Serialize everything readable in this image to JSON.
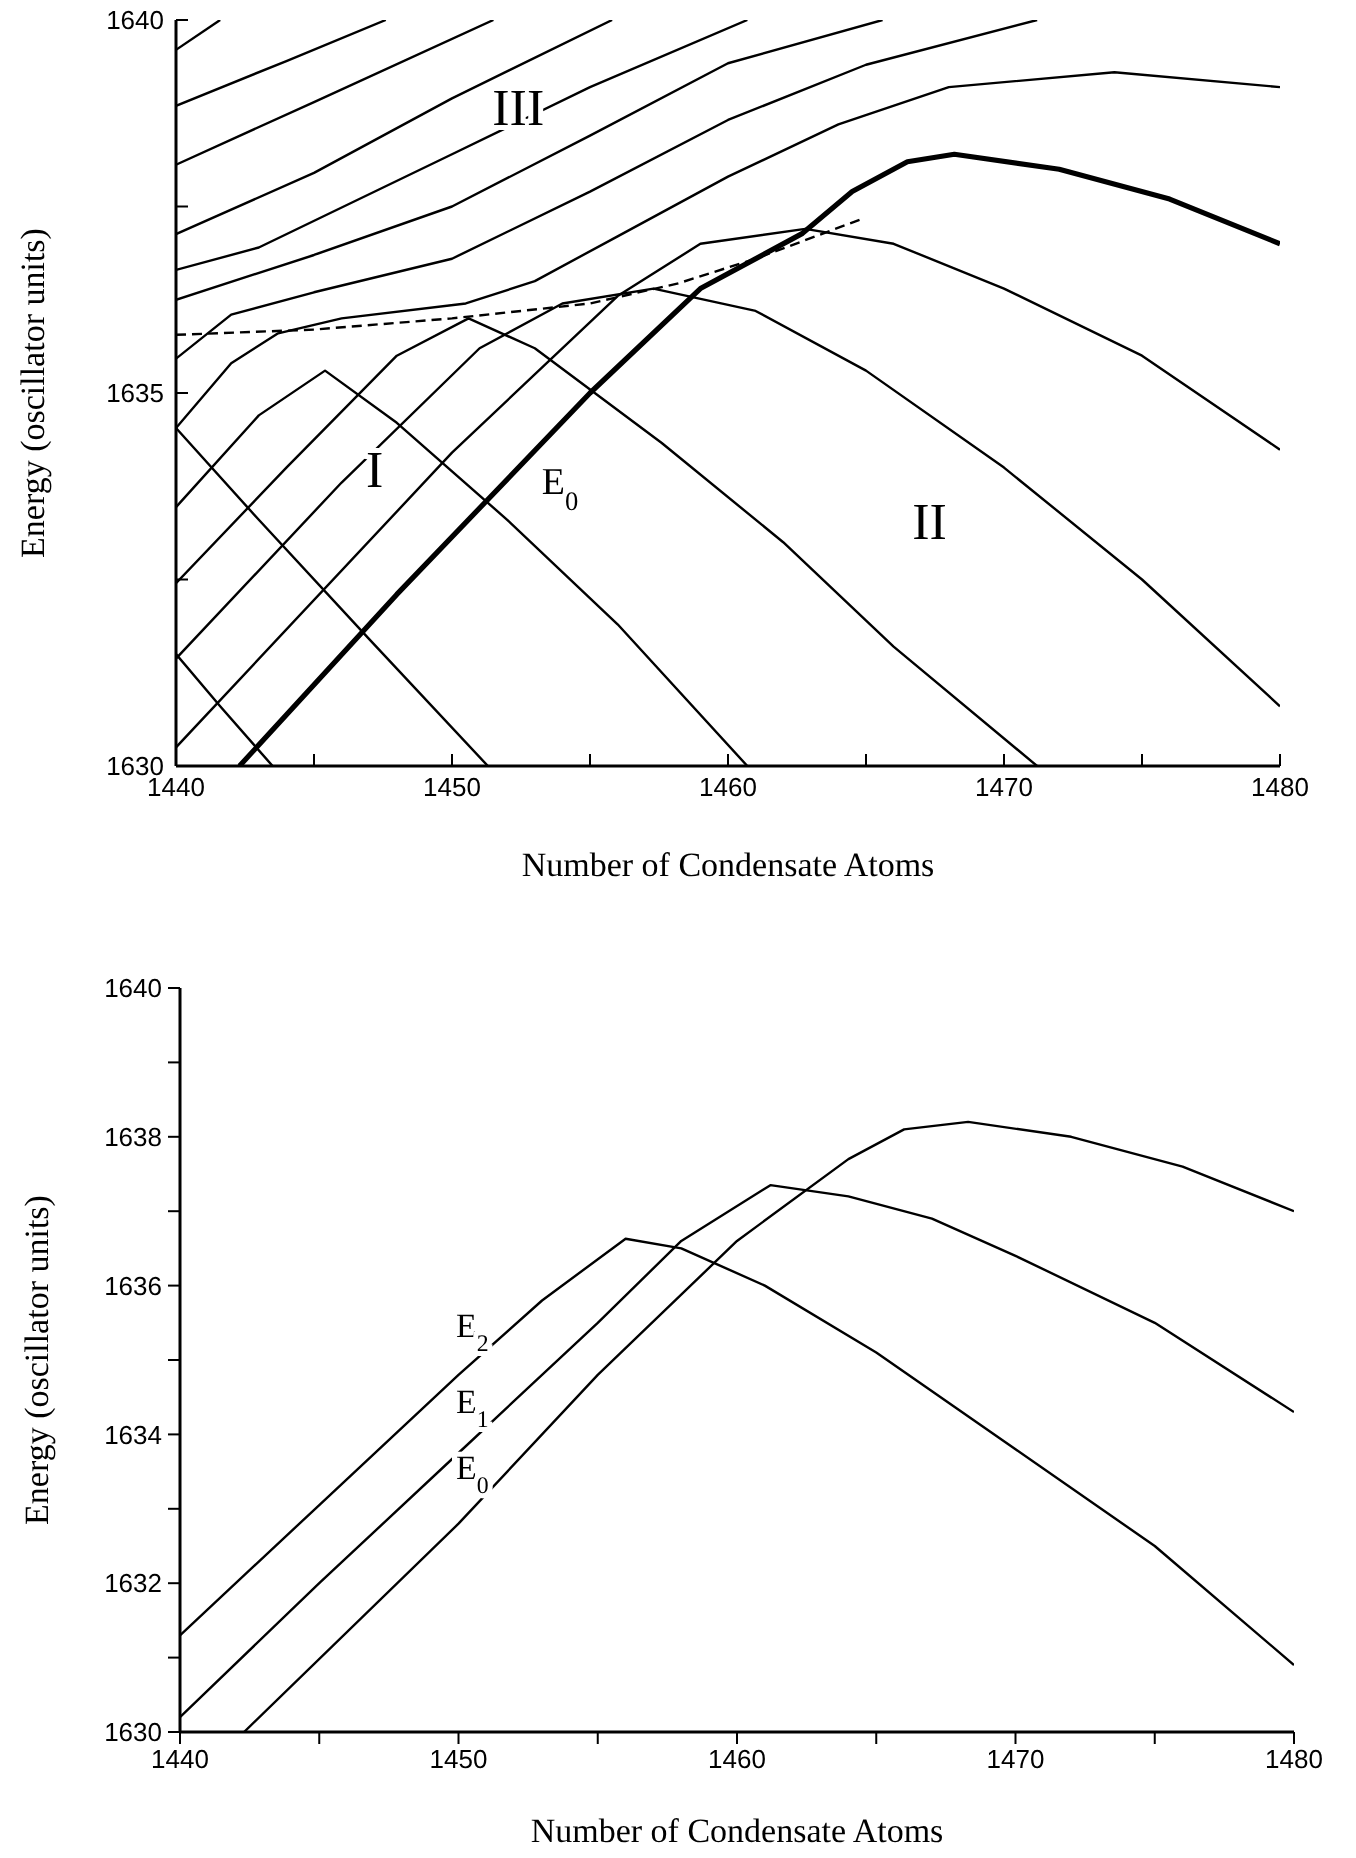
{
  "chart_data": [
    {
      "type": "line",
      "xlabel": "Number of Condensate Atoms",
      "ylabel": "Energy (oscillator units)",
      "xlim": [
        1440,
        1480
      ],
      "xticks": [
        1440,
        {
          "value": 1445,
          "label": null
        },
        1450,
        {
          "value": 1455,
          "label": null
        },
        1460,
        {
          "value": 1465,
          "label": null
        },
        1470,
        {
          "value": 1475,
          "label": null
        },
        1480
      ],
      "ylim": [
        1630,
        1640
      ],
      "yticks": [
        1630,
        {
          "value": 1632.5,
          "label": null
        },
        1635,
        {
          "value": 1637.5,
          "label": null
        },
        1640
      ],
      "series": [
        {
          "name": "E$_{0}$",
          "color": "#000000",
          "x": [
            1442.3,
            1448,
            1455,
            1459,
            1462.7,
            1464.5,
            1466.5,
            1468.2,
            1472,
            1476,
            1480
          ],
          "values": [
            1630,
            1632.3,
            1635,
            1636.4,
            1637.14,
            1637.7,
            1638.1,
            1638.2,
            1638.0,
            1637.6,
            1637.0
          ]
        },
        {
          "color": "#000000",
          "x": [
            1440,
            1450,
            1456,
            1459,
            1462.8,
            1466,
            1470,
            1475,
            1480
          ],
          "values": [
            1630.25,
            1634.2,
            1636.3,
            1637.0,
            1637.2,
            1637.0,
            1636.4,
            1635.5,
            1634.24
          ]
        },
        {
          "color": "#000000",
          "x": [
            1440,
            1446,
            1451,
            1454,
            1457.3,
            1461,
            1465,
            1470,
            1475,
            1480
          ],
          "values": [
            1631.44,
            1633.8,
            1635.6,
            1636.2,
            1636.4,
            1636.1,
            1635.3,
            1634.0,
            1632.5,
            1630.8
          ]
        },
        {
          "color": "#000000",
          "x": [
            1440,
            1444,
            1448,
            1450.6,
            1453,
            1457.6,
            1462,
            1466,
            1471.2
          ],
          "values": [
            1632.45,
            1634.0,
            1635.5,
            1636.0,
            1635.6,
            1634.33,
            1633.0,
            1631.6,
            1630
          ]
        },
        {
          "color": "#000000",
          "x": [
            1440,
            1443,
            1445.4,
            1448,
            1452,
            1456,
            1460.7
          ],
          "values": [
            1633.47,
            1634.7,
            1635.3,
            1634.6,
            1633.3,
            1631.9,
            1630
          ]
        },
        {
          "color": "#000000",
          "x": [
            1440,
            1443,
            1447,
            1451.3
          ],
          "values": [
            1634.53,
            1633.3,
            1631.7,
            1630
          ]
        },
        {
          "color": "#000000",
          "x": [
            1440,
            1441.6,
            1443.5
          ],
          "values": [
            1631.5,
            1630.8,
            1630
          ]
        },
        {
          "color": "#000000",
          "x": [
            1440,
            1441.6
          ],
          "values": [
            1639.6,
            1640
          ]
        },
        {
          "color": "#000000",
          "x": [
            1440,
            1444,
            1447.6
          ],
          "values": [
            1638.85,
            1639.45,
            1640
          ]
        },
        {
          "color": "#000000",
          "x": [
            1440,
            1445,
            1451.5
          ],
          "values": [
            1638.06,
            1638.9,
            1640
          ]
        },
        {
          "color": "#000000",
          "x": [
            1440,
            1445,
            1450,
            1455.8
          ],
          "values": [
            1637.13,
            1637.95,
            1638.95,
            1640
          ]
        },
        {
          "color": "#000000",
          "x": [
            1440,
            1443,
            1450,
            1455,
            1460.7
          ],
          "values": [
            1636.65,
            1636.95,
            1638.2,
            1639.1,
            1640
          ]
        },
        {
          "color": "#000000",
          "x": [
            1440,
            1445,
            1450,
            1455,
            1460,
            1465.6
          ],
          "values": [
            1636.25,
            1636.85,
            1637.5,
            1638.45,
            1639.42,
            1640
          ]
        },
        {
          "color": "#000000",
          "x": [
            1440,
            1442,
            1445,
            1450,
            1455,
            1460,
            1465,
            1471.2
          ],
          "values": [
            1635.46,
            1636.05,
            1636.35,
            1636.8,
            1637.7,
            1638.66,
            1639.4,
            1640
          ]
        },
        {
          "color": "#000000",
          "x": [
            1440,
            1442,
            1443.7,
            1446,
            1450.5,
            1453,
            1456,
            1460,
            1464,
            1468,
            1474,
            1480
          ],
          "values": [
            1634.53,
            1635.4,
            1635.8,
            1636.0,
            1636.2,
            1636.5,
            1637.1,
            1637.9,
            1638.6,
            1639.1,
            1639.3,
            1639.1
          ]
        },
        {
          "color": "#000000",
          "line_style": "dashed",
          "x": [
            1440,
            1445,
            1450,
            1455,
            1458.2,
            1461,
            1464.9
          ],
          "values": [
            1635.78,
            1635.85,
            1636.0,
            1636.2,
            1636.47,
            1636.8,
            1637.34
          ]
        }
      ],
      "annotations": [
        "III",
        "I",
        "II"
      ]
    },
    {
      "type": "line",
      "xlabel": "Number of Condensate Atoms",
      "ylabel": "Energy (oscillator units)",
      "xlim": [
        1440,
        1480
      ],
      "xticks": [
        1440,
        {
          "value": 1445,
          "label": null
        },
        1450,
        {
          "value": 1455,
          "label": null
        },
        1460,
        {
          "value": 1465,
          "label": null
        },
        1470,
        {
          "value": 1475,
          "label": null
        },
        1480
      ],
      "ylim": [
        1630,
        1640
      ],
      "yticks": [
        1630,
        {
          "value": 1631,
          "label": null
        },
        1632,
        {
          "value": 1633,
          "label": null
        },
        1634,
        {
          "value": 1635,
          "label": null
        },
        1636,
        {
          "value": 1637,
          "label": null
        },
        1638,
        {
          "value": 1639,
          "label": null
        },
        1640
      ],
      "series": [
        {
          "name": "E$_{2}$",
          "color": "#000000",
          "x": [
            1440,
            1445,
            1450,
            1453,
            1456,
            1458,
            1461,
            1465,
            1470,
            1475,
            1480
          ],
          "values": [
            1631.3,
            1633.05,
            1634.8,
            1635.8,
            1636.63,
            1636.5,
            1636.0,
            1635.1,
            1633.8,
            1632.5,
            1630.9
          ]
        },
        {
          "name": "E$_{1}$",
          "color": "#000000",
          "x": [
            1440,
            1445,
            1450,
            1455,
            1458,
            1461.2,
            1464,
            1467,
            1470,
            1475,
            1480
          ],
          "values": [
            1630.2,
            1632.0,
            1633.75,
            1635.5,
            1636.6,
            1637.35,
            1637.2,
            1636.9,
            1636.4,
            1635.5,
            1634.3
          ]
        },
        {
          "name": "E$_{0}$",
          "color": "#000000",
          "x": [
            1442.3,
            1450,
            1455,
            1460,
            1464,
            1466,
            1468.3,
            1472,
            1476,
            1480
          ],
          "values": [
            1630,
            1632.8,
            1634.8,
            1636.6,
            1637.7,
            1638.1,
            1638.2,
            1638.0,
            1637.6,
            1637.0
          ]
        }
      ],
      "tick_labels": "xy"
    }
  ]
}
